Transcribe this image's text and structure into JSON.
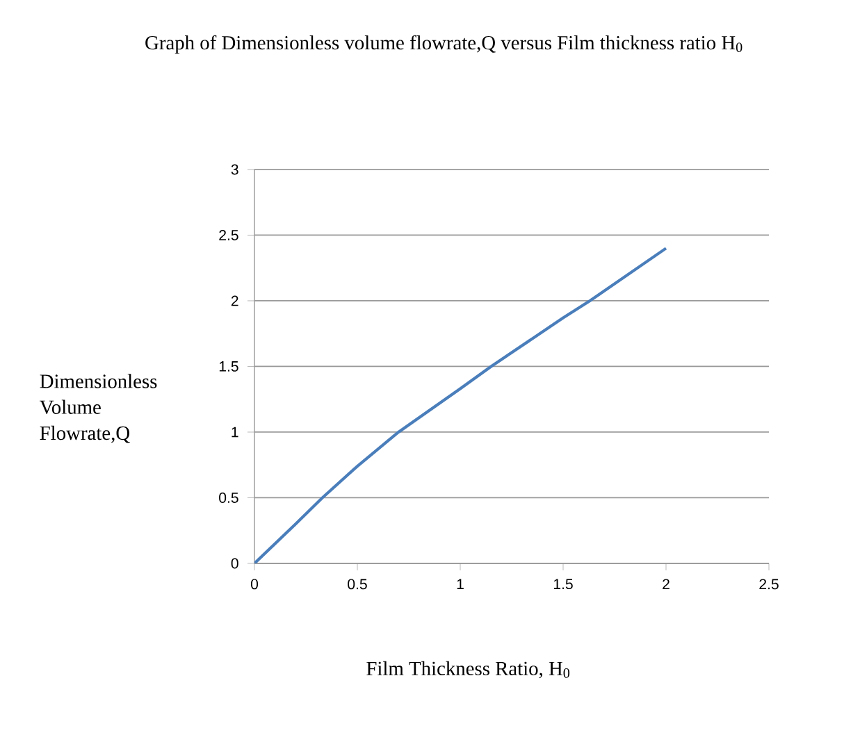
{
  "chart_data": {
    "type": "line",
    "title": "Graph of Dimensionless volume flowrate,Q versus Film thickness ratio H$_{0}$",
    "xlabel": "Film Thickness Ratio, H$_{0}$",
    "ylabel": "Dimensionless Volume Flowrate,Q",
    "x": [
      0,
      0.1,
      0.2,
      0.33,
      0.5,
      0.7,
      1.0,
      1.15,
      1.5,
      1.63,
      2.0
    ],
    "values": [
      0,
      0.15,
      0.3,
      0.5,
      0.74,
      1.0,
      1.33,
      1.5,
      1.87,
      2.0,
      2.4
    ],
    "color": "#4a7ebb",
    "xlim": [
      0,
      2.5
    ],
    "ylim": [
      0,
      3
    ],
    "xticks": [
      0,
      0.5,
      1,
      1.5,
      2,
      2.5
    ],
    "yticks": [
      0,
      0.5,
      1,
      1.5,
      2,
      2.5,
      3
    ],
    "grid": "y"
  }
}
